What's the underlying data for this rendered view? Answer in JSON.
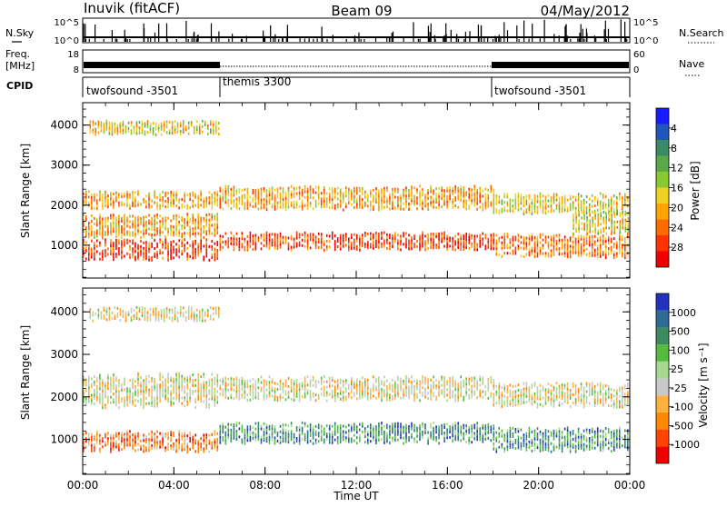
{
  "header": {
    "station": "Inuvik (fitACF)",
    "beam": "Beam 09",
    "date": "04/May/2012"
  },
  "top_panels": {
    "nsky_label": "N.Sky",
    "nsky_ticks": [
      "10^5",
      "10^0"
    ],
    "nsearch_label": "N.Search",
    "nsearch_ticks": [
      "10^5",
      "10^0"
    ],
    "freq_label": "Freq.",
    "freq_unit": "[MHz]",
    "freq_ticks": [
      "18",
      "8"
    ],
    "nave_label": "Nave",
    "nave_ticks": [
      "60",
      "0"
    ],
    "cpid_label": "CPID",
    "cpid_segments": [
      {
        "label": "twofsound -3501",
        "start_hour": 0,
        "end_hour": 6
      },
      {
        "label": "themis 3300",
        "start_hour": 6,
        "end_hour": 18
      },
      {
        "label": "twofsound -3501",
        "start_hour": 18,
        "end_hour": 24
      }
    ]
  },
  "chart_data": [
    {
      "type": "heatmap",
      "panel": "power",
      "xlabel": "Time UT",
      "ylabel": "Slant Range [km]",
      "x_ticks": [
        "00:00",
        "04:00",
        "08:00",
        "12:00",
        "16:00",
        "20:00",
        "00:00"
      ],
      "y_ticks": [
        "1000",
        "2000",
        "3000",
        "4000"
      ],
      "xlim_hours": [
        0,
        24
      ],
      "ylim_km": [
        180,
        4560
      ],
      "colorbar": {
        "label": "Power [dB]",
        "ticks": [
          "4",
          "8",
          "12",
          "16",
          "20",
          "24",
          "28"
        ],
        "colors": [
          "#1a1aff",
          "#2255bb",
          "#3c8a63",
          "#5aa84a",
          "#88c830",
          "#f0d020",
          "#ffa400",
          "#ff6a00",
          "#ff3300",
          "#ee0000"
        ]
      },
      "bands": [
        {
          "start_hour": 0.0,
          "end_hour": 6.0,
          "center_km": 900,
          "half_width_km": 220,
          "level": 8
        },
        {
          "start_hour": 0.0,
          "end_hour": 6.0,
          "center_km": 1500,
          "half_width_km": 250,
          "level": 6
        },
        {
          "start_hour": 0.0,
          "end_hour": 6.0,
          "center_km": 2150,
          "half_width_km": 180,
          "level": 6
        },
        {
          "start_hour": 0.3,
          "end_hour": 6.0,
          "center_km": 3950,
          "half_width_km": 150,
          "level": 5
        },
        {
          "start_hour": 6.0,
          "end_hour": 18.0,
          "center_km": 1100,
          "half_width_km": 200,
          "level": 8
        },
        {
          "start_hour": 6.0,
          "end_hour": 18.0,
          "center_km": 2200,
          "half_width_km": 250,
          "level": 6
        },
        {
          "start_hour": 18.0,
          "end_hour": 24.0,
          "center_km": 1000,
          "half_width_km": 260,
          "level": 7
        },
        {
          "start_hour": 18.0,
          "end_hour": 24.0,
          "center_km": 2050,
          "half_width_km": 220,
          "level": 5
        },
        {
          "start_hour": 21.5,
          "end_hour": 24.0,
          "center_km": 1600,
          "half_width_km": 250,
          "level": 5
        }
      ]
    },
    {
      "type": "heatmap",
      "panel": "velocity",
      "xlabel": "Time UT",
      "ylabel": "Slant Range [km]",
      "x_ticks": [
        "00:00",
        "04:00",
        "08:00",
        "12:00",
        "16:00",
        "20:00",
        "00:00"
      ],
      "y_ticks": [
        "1000",
        "2000",
        "3000",
        "4000"
      ],
      "xlim_hours": [
        0,
        24
      ],
      "ylim_km": [
        180,
        4560
      ],
      "colorbar": {
        "label": "Velocity [m s⁻¹]",
        "ticks": [
          "1000",
          "500",
          "100",
          "25",
          "-25",
          "-100",
          "-500",
          "-1000"
        ],
        "colors": [
          "#2233bb",
          "#2f6a95",
          "#3d8a60",
          "#55bb40",
          "#a8d890",
          "#c8c8c8",
          "#ffb040",
          "#ff8800",
          "#ff4400",
          "#ee0000"
        ]
      },
      "bands": [
        {
          "start_hour": 0.0,
          "end_hour": 6.0,
          "center_km": 950,
          "half_width_km": 220,
          "level": 7
        },
        {
          "start_hour": 0.0,
          "end_hour": 6.0,
          "center_km": 2150,
          "half_width_km": 350,
          "level": 5
        },
        {
          "start_hour": 0.3,
          "end_hour": 6.0,
          "center_km": 3950,
          "half_width_km": 150,
          "level": 5
        },
        {
          "start_hour": 6.0,
          "end_hour": 18.0,
          "center_km": 1150,
          "half_width_km": 220,
          "level": 2
        },
        {
          "start_hour": 6.0,
          "end_hour": 18.0,
          "center_km": 2200,
          "half_width_km": 250,
          "level": 5
        },
        {
          "start_hour": 18.0,
          "end_hour": 24.0,
          "center_km": 1000,
          "half_width_km": 250,
          "level": 2
        },
        {
          "start_hour": 18.0,
          "end_hour": 24.0,
          "center_km": 2050,
          "half_width_km": 250,
          "level": 5
        }
      ]
    }
  ]
}
